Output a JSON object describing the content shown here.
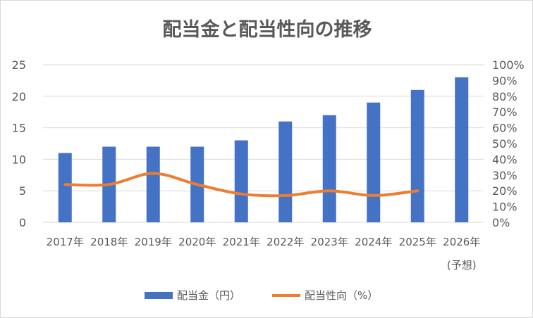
{
  "chart_data": {
    "type": "bar",
    "title": "配当金と配当性向の推移",
    "categories": [
      "2017年",
      "2018年",
      "2019年",
      "2020年",
      "2021年",
      "2022年",
      "2023年",
      "2024年",
      "2025年",
      "2026年"
    ],
    "category_sublabels": [
      "",
      "",
      "",
      "",
      "",
      "",
      "",
      "",
      "",
      "(予想)"
    ],
    "series": [
      {
        "name": "配当金（円）",
        "type": "bar",
        "axis": "left",
        "color": "#4472C4",
        "values": [
          11,
          12,
          12,
          12,
          13,
          16,
          17,
          19,
          21,
          23
        ]
      },
      {
        "name": "配当性向（%）",
        "type": "line",
        "axis": "right",
        "color": "#ED7D31",
        "values": [
          24,
          24,
          31,
          24,
          18,
          17,
          20,
          17,
          20,
          null
        ]
      }
    ],
    "y_left": {
      "min": 0,
      "max": 25,
      "ticks": [
        0,
        5,
        10,
        15,
        20,
        25
      ]
    },
    "y_right": {
      "min": 0,
      "max": 100,
      "unit": "%",
      "ticks": [
        0,
        10,
        20,
        30,
        40,
        50,
        60,
        70,
        80,
        90,
        100
      ]
    },
    "grid": "horizontal",
    "legend_position": "bottom"
  }
}
